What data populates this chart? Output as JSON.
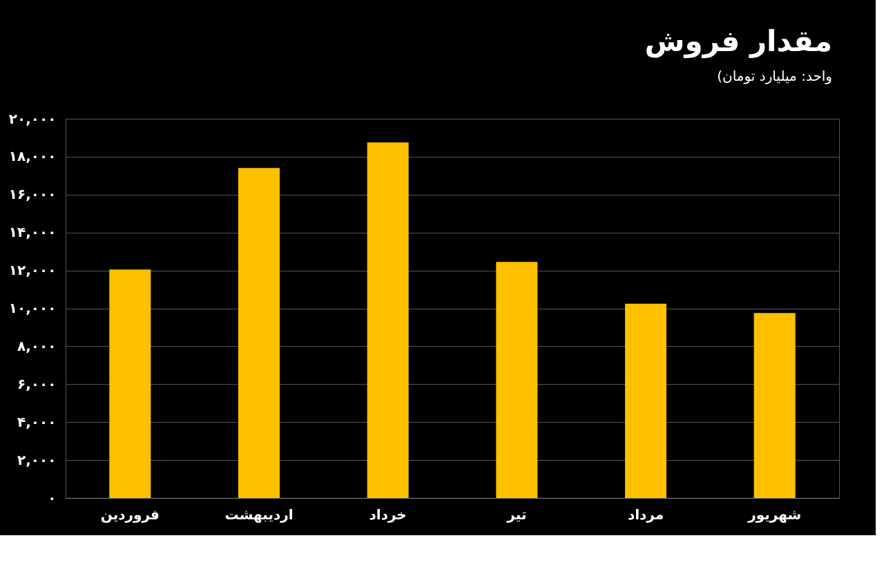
{
  "chart_data": {
    "type": "bar",
    "title": "مقدار فروش",
    "subtitle": "(واحد: میلیارد تومان",
    "categories": [
      "فروردین",
      "اردیبهشت",
      "خرداد",
      "تیر",
      "مرداد",
      "شهریور"
    ],
    "values": [
      12050,
      17400,
      18750,
      12450,
      10250,
      9750
    ],
    "color": "#ffc000",
    "ylim": [
      0,
      20000
    ],
    "yticks": [
      {
        "value": 0,
        "label": "۰"
      },
      {
        "value": 2000,
        "label": "۲,۰۰۰"
      },
      {
        "value": 4000,
        "label": "۴,۰۰۰"
      },
      {
        "value": 6000,
        "label": "۶,۰۰۰"
      },
      {
        "value": 8000,
        "label": "۸,۰۰۰"
      },
      {
        "value": 10000,
        "label": "۱۰,۰۰۰"
      },
      {
        "value": 12000,
        "label": "۱۲,۰۰۰"
      },
      {
        "value": 14000,
        "label": "۱۴,۰۰۰"
      },
      {
        "value": 16000,
        "label": "۱۶,۰۰۰"
      },
      {
        "value": 18000,
        "label": "۱۸,۰۰۰"
      },
      {
        "value": 20000,
        "label": "۲۰,۰۰۰"
      }
    ],
    "grid": "y"
  }
}
